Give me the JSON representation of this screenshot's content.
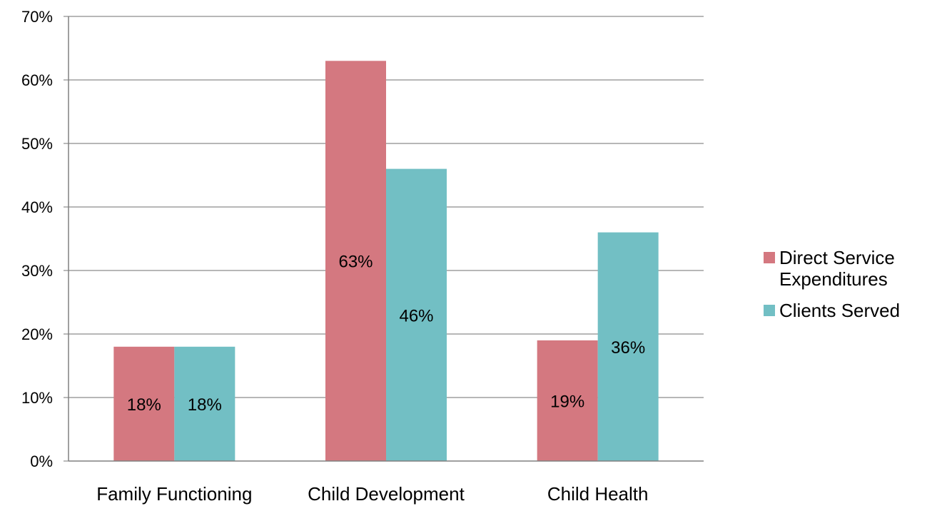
{
  "chart_data": {
    "type": "bar",
    "categories": [
      "Family Functioning",
      "Child Development",
      "Child Health"
    ],
    "series": [
      {
        "name": "Direct Service Expenditures",
        "values": [
          18,
          63,
          19
        ],
        "labels": [
          "18%",
          "63%",
          "19%"
        ],
        "color": "#d47880"
      },
      {
        "name": "Clients Served",
        "values": [
          18,
          46,
          36
        ],
        "labels": [
          "18%",
          "46%",
          "36%"
        ],
        "color": "#72bfc4"
      }
    ],
    "ylim": [
      0,
      70
    ],
    "yticks": [
      "0%",
      "10%",
      "20%",
      "30%",
      "40%",
      "50%",
      "60%",
      "70%"
    ],
    "grid": true,
    "legend_position": "right"
  }
}
